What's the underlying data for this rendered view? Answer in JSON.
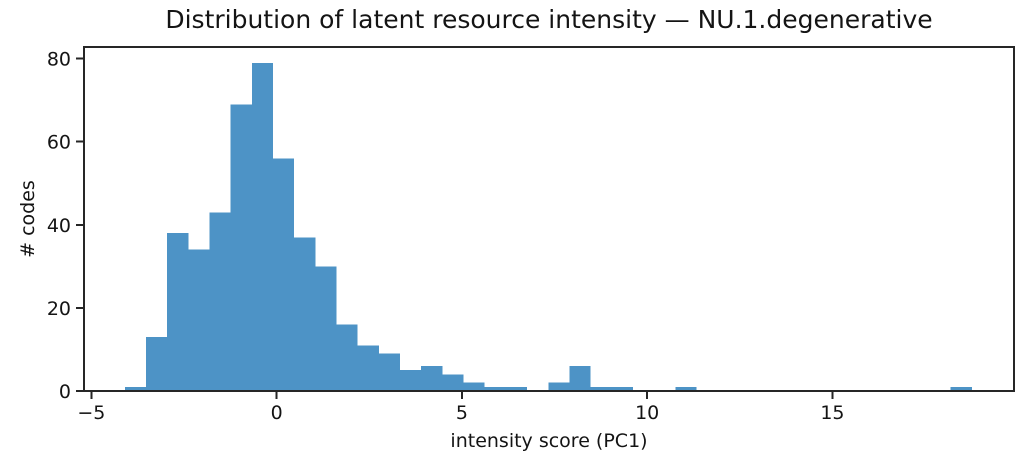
{
  "figure": {
    "background": "#ffffff"
  },
  "chart_data": {
    "type": "bar",
    "subtype": "histogram",
    "title": "Distribution of latent resource intensity — NU.1.degenerative",
    "xlabel": "intensity score (PC1)",
    "ylabel": "# codes",
    "bar_color": "#4d93c6",
    "axis_color": "#262626",
    "text_color": "#141414",
    "grid": false,
    "legend_visible": false,
    "bin_start": -4.1,
    "bin_width": 0.5715,
    "bin_count": 40,
    "counts": [
      1,
      13,
      38,
      34,
      43,
      69,
      79,
      56,
      37,
      30,
      16,
      11,
      9,
      5,
      6,
      4,
      2,
      1,
      1,
      0,
      2,
      6,
      1,
      1,
      0,
      0,
      1,
      0,
      0,
      0,
      0,
      0,
      0,
      0,
      0,
      0,
      0,
      0,
      0,
      1
    ],
    "peak_count": 79,
    "xlim": [
      -5.2,
      19.9
    ],
    "ylim": [
      0,
      82.8
    ],
    "x_ticks": [
      {
        "value": -5,
        "label": "−5"
      },
      {
        "value": 0,
        "label": "0"
      },
      {
        "value": 5,
        "label": "5"
      },
      {
        "value": 10,
        "label": "10"
      },
      {
        "value": 15,
        "label": "15"
      }
    ],
    "y_ticks": [
      {
        "value": 0,
        "label": "0"
      },
      {
        "value": 20,
        "label": "20"
      },
      {
        "value": 40,
        "label": "40"
      },
      {
        "value": 60,
        "label": "60"
      },
      {
        "value": 80,
        "label": "80"
      }
    ]
  }
}
